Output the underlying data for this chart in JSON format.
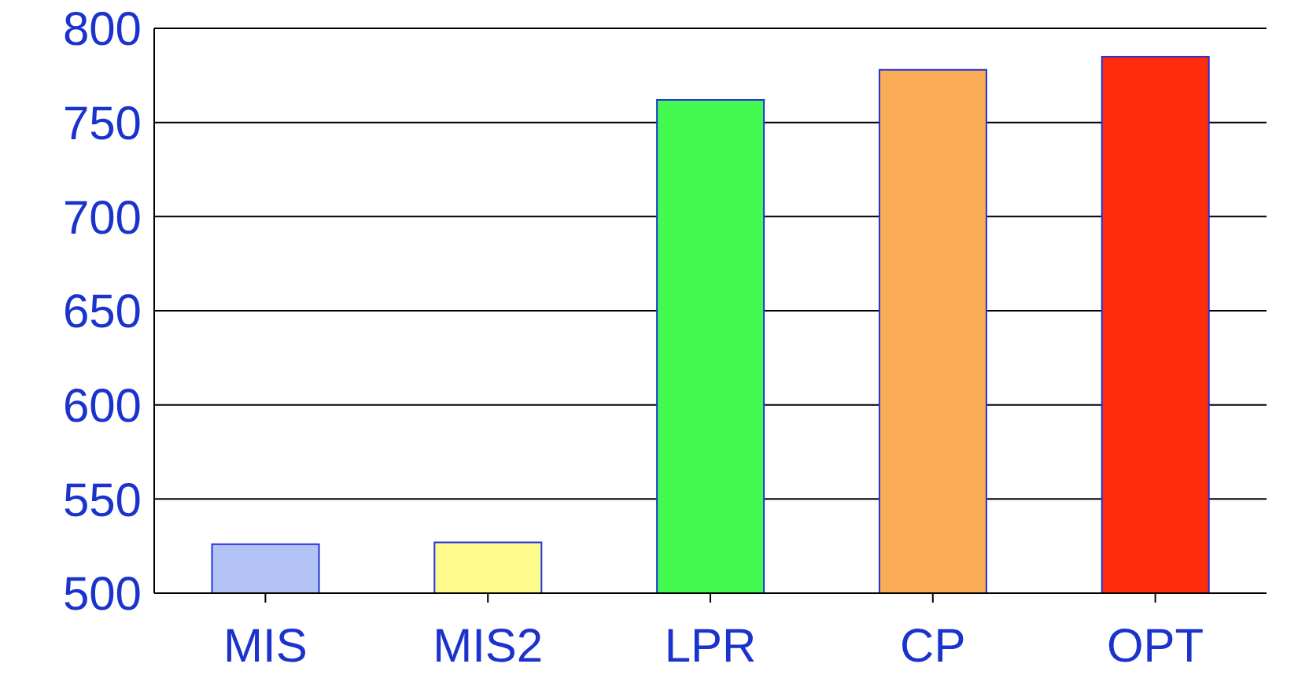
{
  "chart_data": {
    "type": "bar",
    "categories": [
      "MIS",
      "MIS2",
      "LPR",
      "CP",
      "OPT"
    ],
    "values": [
      526,
      527,
      762,
      778,
      785
    ],
    "colors": [
      "#b3c3f5",
      "#fffa8c",
      "#44fa50",
      "#f9ab55",
      "#ff2d0b"
    ],
    "ylim": [
      500,
      800
    ],
    "yticks": [
      500,
      550,
      600,
      650,
      700,
      750,
      800
    ],
    "grid": "y"
  }
}
